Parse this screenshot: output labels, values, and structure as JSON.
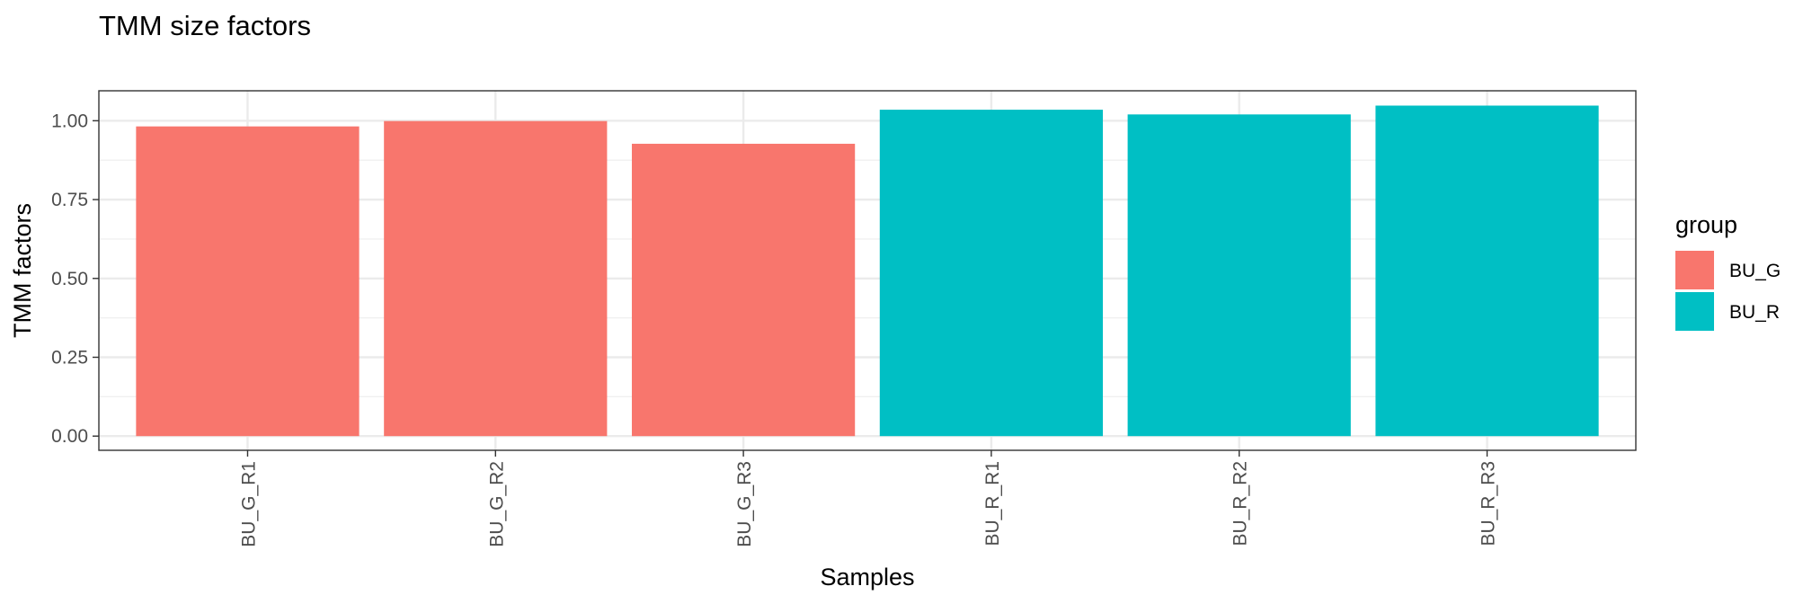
{
  "chart_data": {
    "type": "bar",
    "title": "TMM size factors",
    "xlabel": "Samples",
    "ylabel": "TMM factors",
    "categories": [
      "BU_G_R1",
      "BU_G_R2",
      "BU_G_R3",
      "BU_R_R1",
      "BU_R_R2",
      "BU_R_R3"
    ],
    "values": [
      0.982,
      0.999,
      0.927,
      1.035,
      1.02,
      1.048
    ],
    "groups": [
      "BU_G",
      "BU_G",
      "BU_G",
      "BU_R",
      "BU_R",
      "BU_R"
    ],
    "ylim": [
      -0.045,
      1.095
    ],
    "yticks": [
      0.0,
      0.25,
      0.5,
      0.75,
      1.0
    ],
    "ytick_labels": [
      "0.00",
      "0.25",
      "0.50",
      "0.75",
      "1.00"
    ],
    "grid": true,
    "x_tick_rotation": "vertical",
    "legend": {
      "title": "group",
      "position": "right",
      "entries": [
        {
          "label": "BU_G",
          "color": "#F8766D"
        },
        {
          "label": "BU_R",
          "color": "#00BFC4"
        }
      ]
    },
    "colors": {
      "BU_G": "#F8766D",
      "BU_R": "#00BFC4"
    }
  }
}
